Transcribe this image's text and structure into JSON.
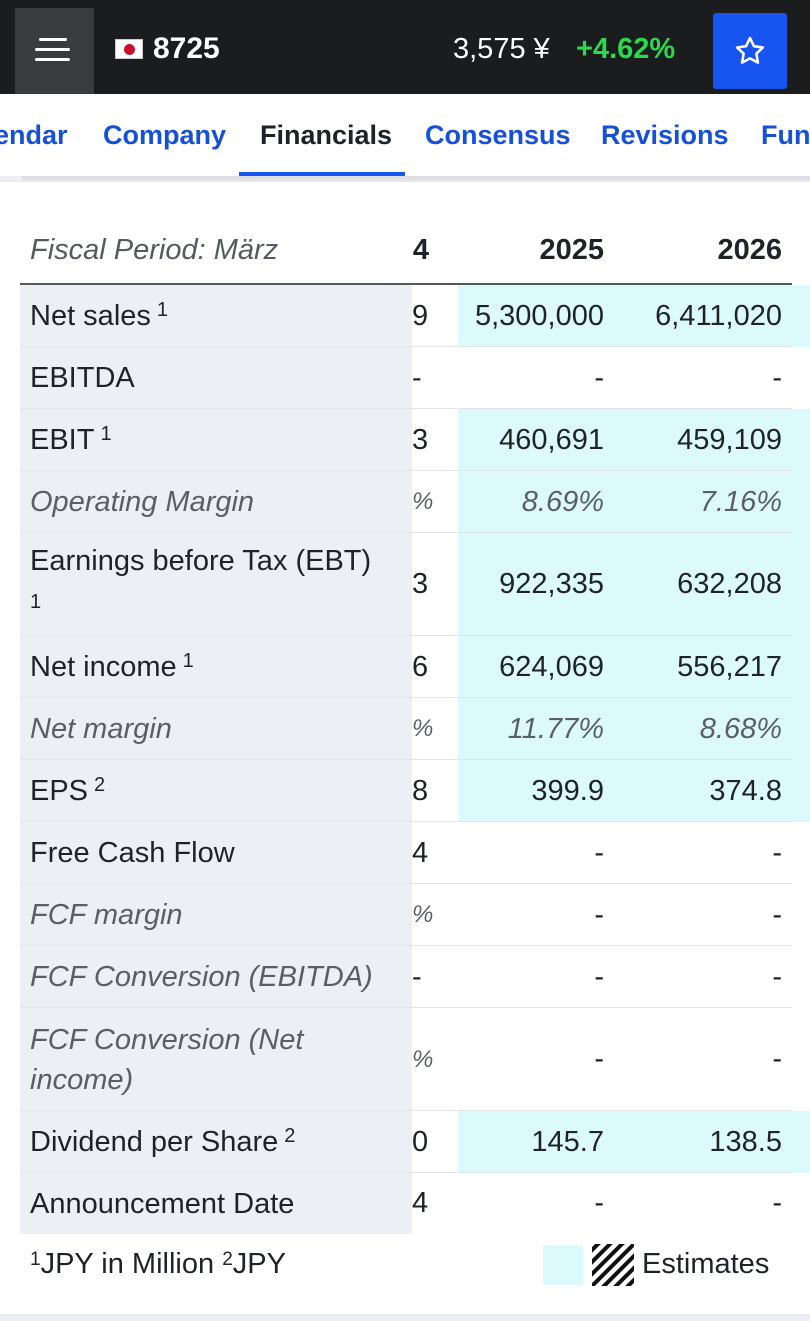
{
  "topbar": {
    "ticker": "8725",
    "price": "3,575 ¥",
    "change": "+4.62%",
    "colors": {
      "background": "#1b1c1e",
      "change_positive": "#2bd94f",
      "favorite_button": "#1754f0"
    }
  },
  "tabs": [
    {
      "label": "endar"
    },
    {
      "label": "Company"
    },
    {
      "label": "Financials",
      "active": true
    },
    {
      "label": "Consensus"
    },
    {
      "label": "Revisions"
    },
    {
      "label": "Fun"
    }
  ],
  "table": {
    "period_label": "Fiscal Period: März",
    "cut_year": "4",
    "years": [
      "2025",
      "2026"
    ],
    "rows": [
      {
        "label": "Net sales",
        "note": "1",
        "cut": "9",
        "v2025": "5,300,000",
        "v2026": "6,411,020",
        "estimate": true
      },
      {
        "label": "EBITDA",
        "cut": "-",
        "v2025": "-",
        "v2026": "-"
      },
      {
        "label": "EBIT",
        "note": "1",
        "cut": "3",
        "v2025": "460,691",
        "v2026": "459,109",
        "estimate": true
      },
      {
        "label": "Operating Margin",
        "cut": "%",
        "v2025": "8.69%",
        "v2026": "7.16%",
        "estimate": true,
        "italic": true
      },
      {
        "label": "Earnings before Tax (EBT)",
        "note": "1",
        "cut": "3",
        "v2025": "922,335",
        "v2026": "632,208",
        "estimate": true
      },
      {
        "label": "Net income",
        "note": "1",
        "cut": "6",
        "v2025": "624,069",
        "v2026": "556,217",
        "estimate": true
      },
      {
        "label": "Net margin",
        "cut": "%",
        "v2025": "11.77%",
        "v2026": "8.68%",
        "estimate": true,
        "italic": true
      },
      {
        "label": "EPS",
        "note": "2",
        "cut": "8",
        "v2025": "399.9",
        "v2026": "374.8",
        "estimate": true
      },
      {
        "label": "Free Cash Flow",
        "cut": "4",
        "v2025": "-",
        "v2026": "-"
      },
      {
        "label": "FCF margin",
        "cut": "%",
        "v2025": "-",
        "v2026": "-",
        "italic": true
      },
      {
        "label": "FCF Conversion (EBITDA)",
        "cut": "-",
        "v2025": "-",
        "v2026": "-",
        "italic": true
      },
      {
        "label": "FCF Conversion (Net income)",
        "cut": "%",
        "v2025": "-",
        "v2026": "-",
        "italic": true
      },
      {
        "label": "Dividend per Share",
        "note": "2",
        "cut": "0",
        "v2025": "145.7",
        "v2026": "138.5",
        "estimate": true
      },
      {
        "label": "Announcement Date",
        "cut": "4",
        "v2025": "-",
        "v2026": "-"
      }
    ]
  },
  "footer": {
    "note1_mark": "1",
    "note1_text": "JPY in Million",
    "note2_mark": "2",
    "note2_text": "JPY",
    "legend_label": "Estimates",
    "estimate_color": "#dcfafc"
  }
}
